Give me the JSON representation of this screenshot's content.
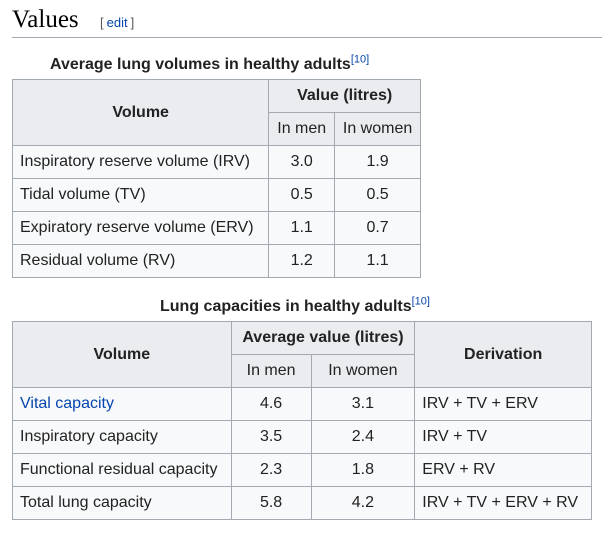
{
  "section": {
    "title": "Values",
    "edit_open": "[",
    "edit_label": "edit",
    "edit_close": "]"
  },
  "table1": {
    "caption": "Average lung volumes in healthy adults",
    "ref": "[10]",
    "headers": {
      "volume": "Volume",
      "value": "Value (litres)",
      "men": "In men",
      "women": "In women"
    },
    "rows": [
      {
        "name": "Inspiratory reserve volume (IRV)",
        "men": "3.0",
        "women": "1.9"
      },
      {
        "name": "Tidal volume (TV)",
        "men": "0.5",
        "women": "0.5"
      },
      {
        "name": "Expiratory reserve volume (ERV)",
        "men": "1.1",
        "women": "0.7"
      },
      {
        "name": "Residual volume (RV)",
        "men": "1.2",
        "women": "1.1"
      }
    ]
  },
  "table2": {
    "caption": "Lung capacities in healthy adults",
    "ref": "[10]",
    "headers": {
      "volume": "Volume",
      "value": "Average value (litres)",
      "men": "In men",
      "women": "In women",
      "derivation": "Derivation"
    },
    "rows": [
      {
        "name": "Vital capacity",
        "men": "4.6",
        "women": "3.1",
        "derivation": "IRV + TV + ERV"
      },
      {
        "name": "Inspiratory capacity",
        "men": "3.5",
        "women": "2.4",
        "derivation": "IRV + TV"
      },
      {
        "name": "Functional residual capacity",
        "men": "2.3",
        "women": "1.8",
        "derivation": "ERV + RV"
      },
      {
        "name": "Total lung capacity",
        "men": "5.8",
        "women": "4.2",
        "derivation": "IRV + TV + ERV + RV"
      }
    ]
  },
  "colors": {
    "link": "#0645ad",
    "header_bg": "#eaecf0",
    "cell_bg": "#f8f9fa",
    "border": "#a2a9b1"
  }
}
